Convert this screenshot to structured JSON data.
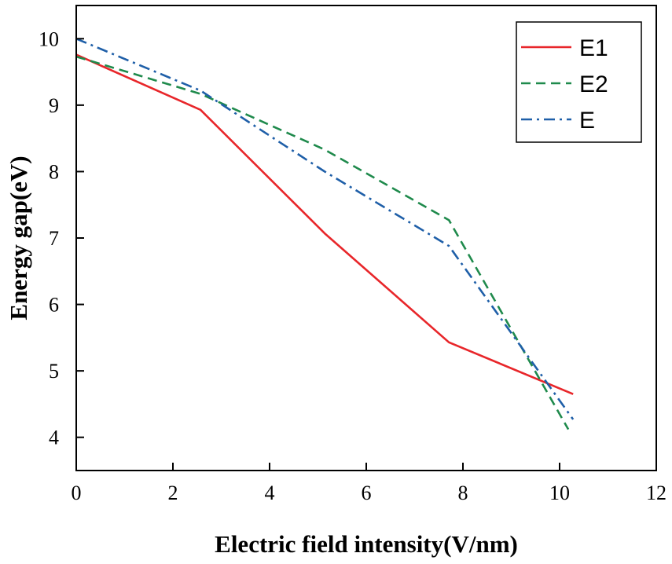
{
  "chart_data": {
    "type": "line",
    "title": "",
    "xlabel": "Electric field intensity(V/nm)",
    "ylabel": "Energy gap(eV)",
    "xlim": [
      0,
      12
    ],
    "ylim": [
      3.5,
      10.5
    ],
    "xticks": [
      0,
      2,
      4,
      6,
      8,
      10,
      12
    ],
    "yticks": [
      4,
      5,
      6,
      7,
      8,
      9,
      10
    ],
    "grid": false,
    "legend_position": "top-right",
    "series": [
      {
        "name": "E1",
        "color": "#e8262a",
        "style": "solid",
        "x": [
          0,
          2.57,
          5.14,
          7.71,
          10.28
        ],
        "y": [
          9.76,
          8.93,
          7.07,
          5.43,
          4.65
        ]
      },
      {
        "name": "E2",
        "color": "#1f8a4c",
        "style": "dashed",
        "x": [
          0,
          2.57,
          5.14,
          7.71,
          10.18
        ],
        "y": [
          9.73,
          9.17,
          8.33,
          7.27,
          4.12
        ]
      },
      {
        "name": "E",
        "color": "#1f5fa8",
        "style": "dashdot",
        "x": [
          0,
          2.57,
          5.14,
          7.71,
          10.28
        ],
        "y": [
          10.0,
          9.22,
          8.0,
          6.88,
          4.27
        ]
      }
    ]
  }
}
